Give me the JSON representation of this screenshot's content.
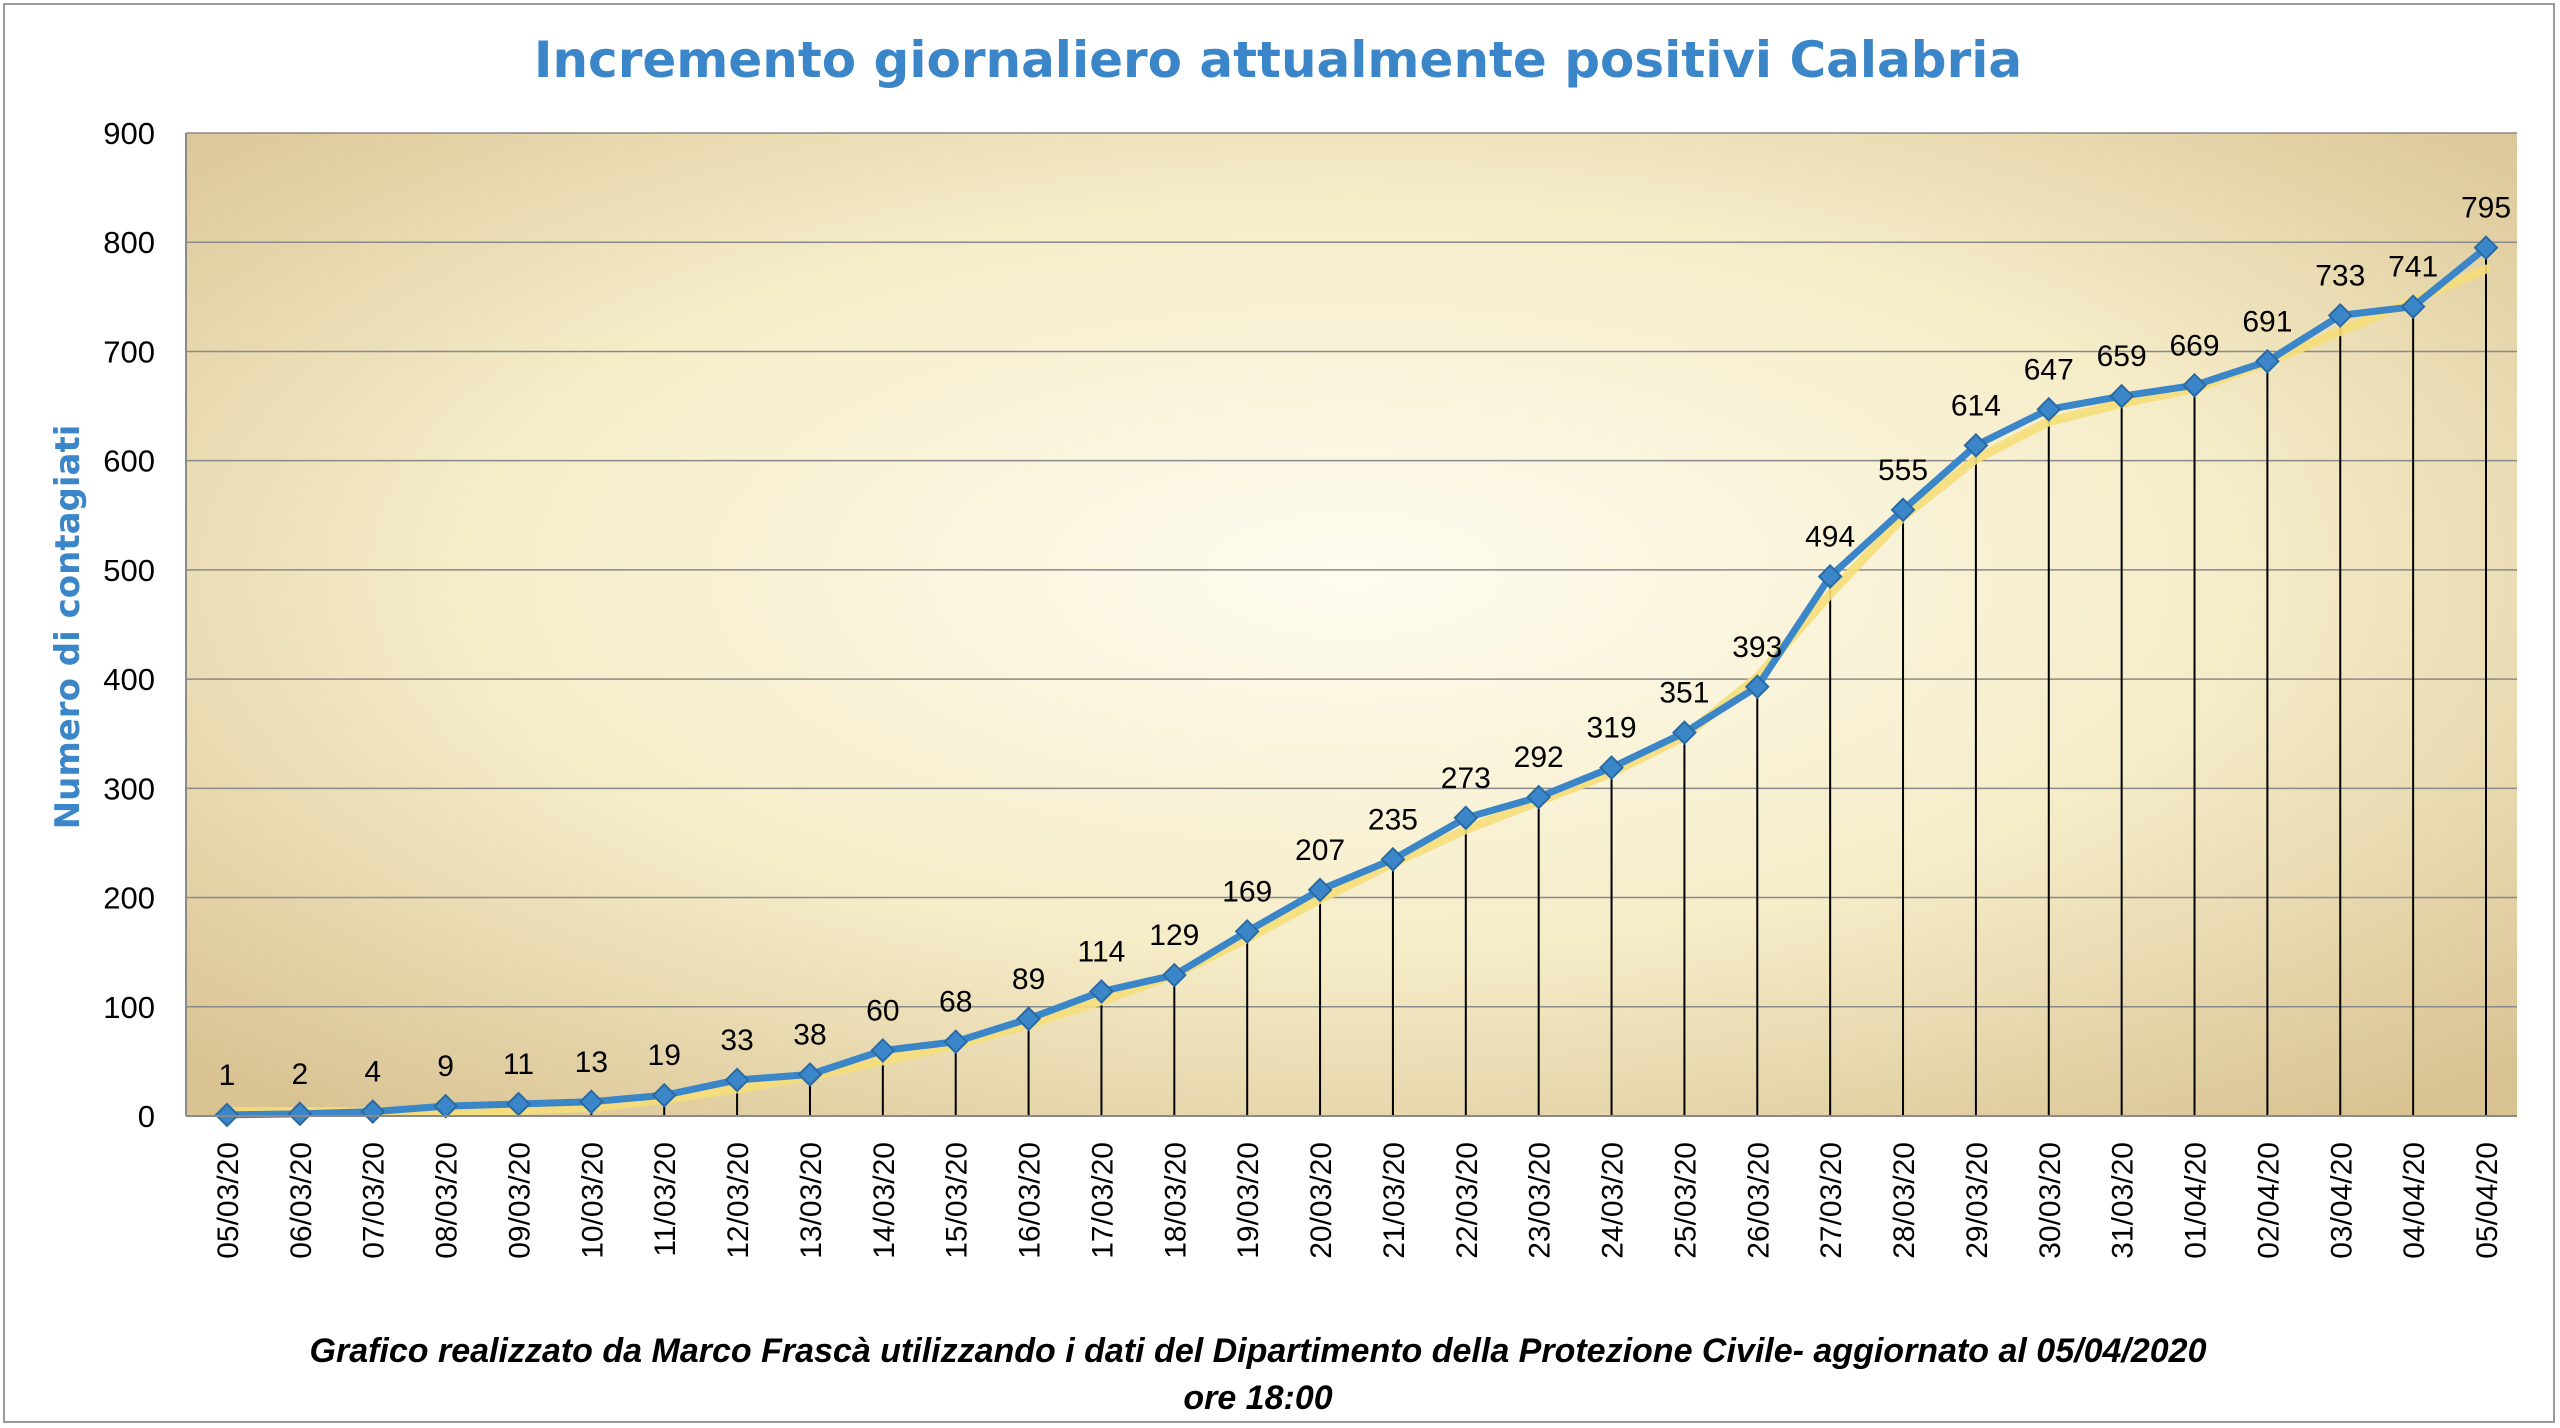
{
  "chart_data": {
    "type": "line",
    "title": "Incremento giornaliero attualmente positivi Calabria",
    "ylabel": "Numero di contagiati",
    "xlabel": "",
    "ylim": [
      0,
      900
    ],
    "yticks": [
      "0",
      "100",
      "200",
      "300",
      "400",
      "500",
      "600",
      "700",
      "800",
      "900"
    ],
    "grid": true,
    "legend": "none",
    "categories": [
      "05/03/20",
      "06/03/20",
      "07/03/20",
      "08/03/20",
      "09/03/20",
      "10/03/20",
      "11/03/20",
      "12/03/20",
      "13/03/20",
      "14/03/20",
      "15/03/20",
      "16/03/20",
      "17/03/20",
      "18/03/20",
      "19/03/20",
      "20/03/20",
      "21/03/20",
      "22/03/20",
      "23/03/20",
      "24/03/20",
      "25/03/20",
      "26/03/20",
      "27/03/20",
      "28/03/20",
      "29/03/20",
      "30/03/20",
      "31/03/20",
      "01/04/20",
      "02/04/20",
      "03/04/20",
      "04/04/20",
      "05/04/20"
    ],
    "series": [
      {
        "values": [
          1,
          2,
          4,
          9,
          11,
          13,
          19,
          33,
          38,
          60,
          68,
          89,
          114,
          129,
          169,
          207,
          235,
          273,
          292,
          319,
          351,
          393,
          494,
          555,
          614,
          647,
          659,
          669,
          691,
          733,
          741,
          795
        ]
      }
    ],
    "caption_line1": "Grafico  realizzato da Marco Frascà  utilizzando i dati del Dipartimento  della Protezione Civile- aggiornato al 05/04/2020",
    "caption_line2": "ore 18:00",
    "colors": {
      "line": "#3a86c8",
      "marker": "#3a86c8",
      "trend": "#f5de7a",
      "title": "#3a86c8",
      "plot_center": "#fefcef",
      "plot_edge": "#d9c393"
    }
  }
}
